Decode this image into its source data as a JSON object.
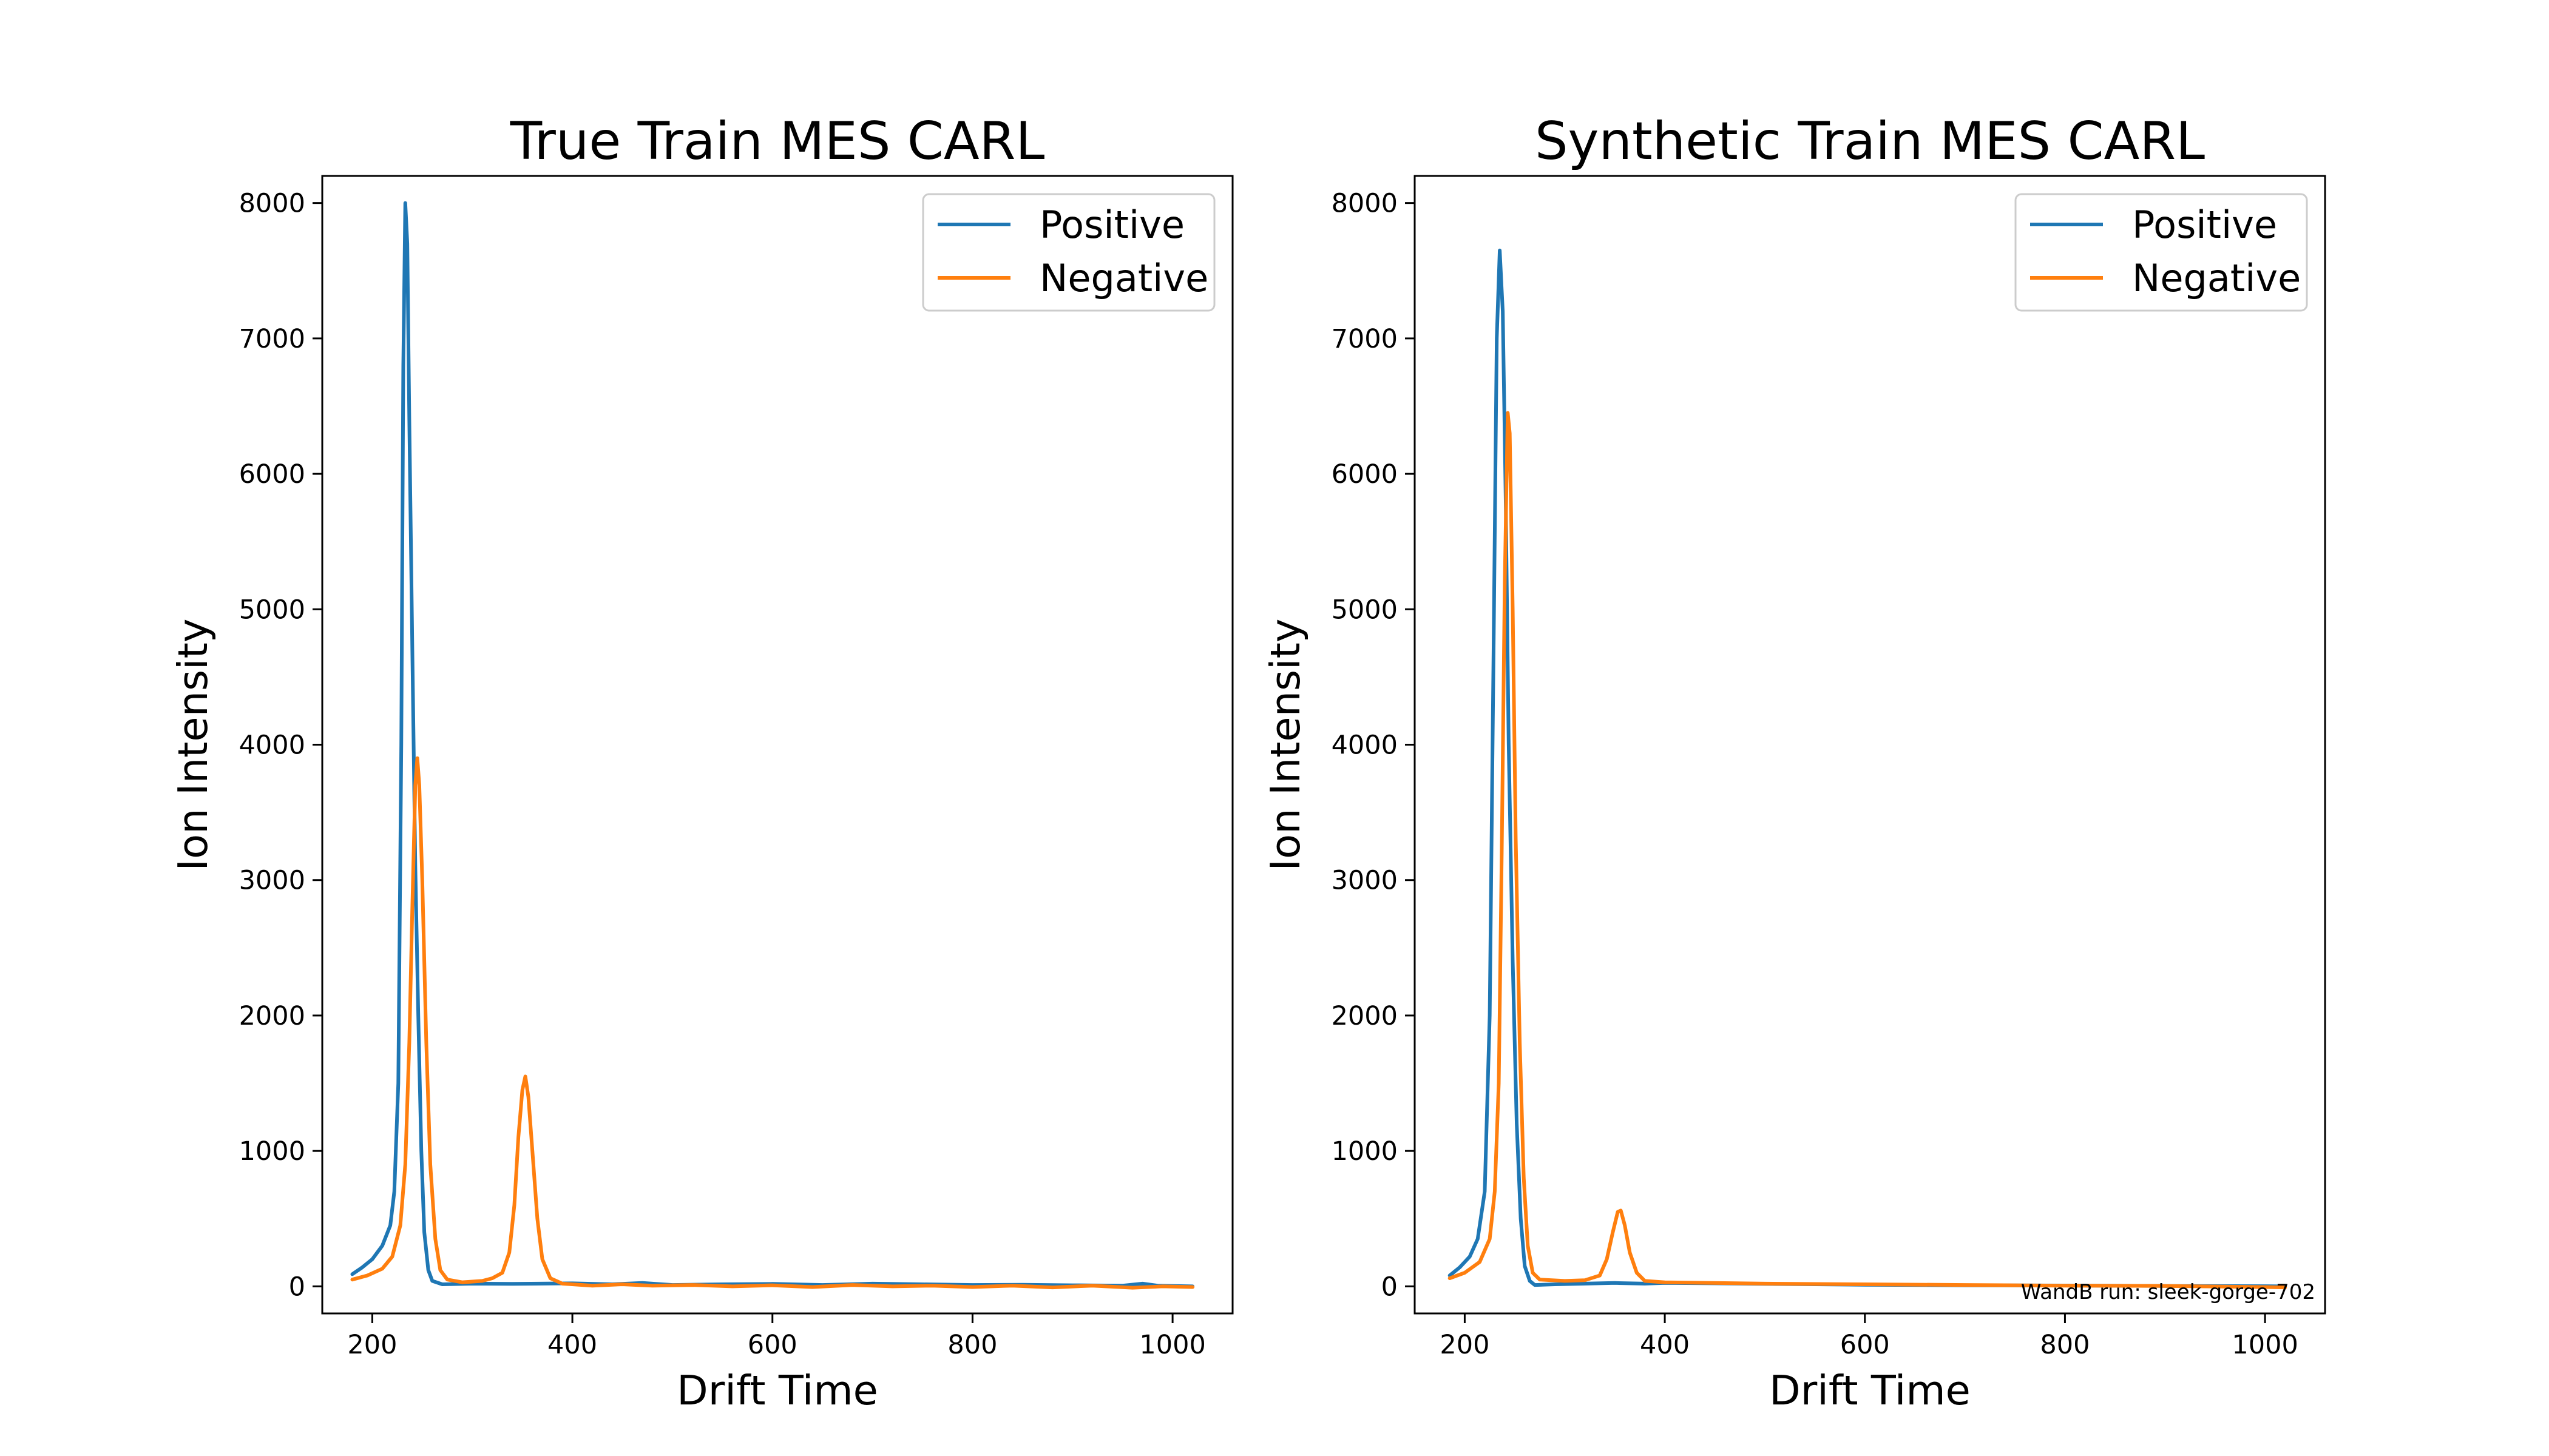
{
  "chart_data": [
    {
      "type": "line",
      "title": "True Train MES CARL",
      "xlabel": "Drift Time",
      "ylabel": "Ion Intensity",
      "xlim": [
        150,
        1060
      ],
      "ylim": [
        -200,
        8200
      ],
      "xticks": [
        200,
        400,
        600,
        800,
        1000
      ],
      "yticks": [
        0,
        1000,
        2000,
        3000,
        4000,
        5000,
        6000,
        7000,
        8000
      ],
      "grid": false,
      "legend_position": "top-right",
      "series": [
        {
          "name": "Positive",
          "color": "#1f77b4",
          "points": [
            [
              180,
              90
            ],
            [
              190,
              140
            ],
            [
              200,
              200
            ],
            [
              210,
              300
            ],
            [
              218,
              450
            ],
            [
              222,
              700
            ],
            [
              226,
              1500
            ],
            [
              229,
              4000
            ],
            [
              231,
              6800
            ],
            [
              233,
              8000
            ],
            [
              235,
              7700
            ],
            [
              237,
              6400
            ],
            [
              240,
              4700
            ],
            [
              243,
              3100
            ],
            [
              246,
              2000
            ],
            [
              249,
              1000
            ],
            [
              252,
              400
            ],
            [
              256,
              120
            ],
            [
              260,
              40
            ],
            [
              270,
              15
            ],
            [
              300,
              20
            ],
            [
              340,
              18
            ],
            [
              400,
              22
            ],
            [
              440,
              15
            ],
            [
              470,
              25
            ],
            [
              500,
              10
            ],
            [
              550,
              15
            ],
            [
              600,
              18
            ],
            [
              650,
              10
            ],
            [
              700,
              20
            ],
            [
              750,
              15
            ],
            [
              800,
              10
            ],
            [
              850,
              12
            ],
            [
              900,
              8
            ],
            [
              950,
              5
            ],
            [
              970,
              20
            ],
            [
              985,
              5
            ],
            [
              1000,
              3
            ],
            [
              1020,
              0
            ]
          ]
        },
        {
          "name": "Negative",
          "color": "#ff7f0e",
          "points": [
            [
              180,
              50
            ],
            [
              195,
              80
            ],
            [
              210,
              130
            ],
            [
              220,
              220
            ],
            [
              228,
              450
            ],
            [
              233,
              900
            ],
            [
              237,
              1800
            ],
            [
              240,
              2800
            ],
            [
              243,
              3700
            ],
            [
              245,
              3900
            ],
            [
              247,
              3700
            ],
            [
              250,
              3000
            ],
            [
              254,
              1800
            ],
            [
              258,
              900
            ],
            [
              263,
              350
            ],
            [
              268,
              120
            ],
            [
              275,
              50
            ],
            [
              290,
              30
            ],
            [
              310,
              40
            ],
            [
              320,
              60
            ],
            [
              330,
              100
            ],
            [
              337,
              250
            ],
            [
              342,
              600
            ],
            [
              346,
              1100
            ],
            [
              350,
              1450
            ],
            [
              353,
              1550
            ],
            [
              356,
              1400
            ],
            [
              360,
              1000
            ],
            [
              365,
              500
            ],
            [
              370,
              200
            ],
            [
              378,
              60
            ],
            [
              390,
              20
            ],
            [
              420,
              5
            ],
            [
              450,
              15
            ],
            [
              480,
              5
            ],
            [
              520,
              10
            ],
            [
              560,
              0
            ],
            [
              600,
              8
            ],
            [
              640,
              -5
            ],
            [
              680,
              10
            ],
            [
              720,
              0
            ],
            [
              760,
              5
            ],
            [
              800,
              -5
            ],
            [
              840,
              5
            ],
            [
              880,
              -8
            ],
            [
              920,
              5
            ],
            [
              960,
              -10
            ],
            [
              990,
              0
            ],
            [
              1020,
              -5
            ]
          ]
        }
      ]
    },
    {
      "type": "line",
      "title": "Synthetic Train MES CARL",
      "xlabel": "Drift Time",
      "ylabel": "Ion Intensity",
      "xlim": [
        150,
        1060
      ],
      "ylim": [
        -200,
        8200
      ],
      "xticks": [
        200,
        400,
        600,
        800,
        1000
      ],
      "yticks": [
        0,
        1000,
        2000,
        3000,
        4000,
        5000,
        6000,
        7000,
        8000
      ],
      "grid": false,
      "legend_position": "top-right",
      "annotation": "WandB run: sleek-gorge-702",
      "series": [
        {
          "name": "Positive",
          "color": "#1f77b4",
          "points": [
            [
              185,
              80
            ],
            [
              195,
              140
            ],
            [
              205,
              220
            ],
            [
              213,
              350
            ],
            [
              220,
              700
            ],
            [
              225,
              2000
            ],
            [
              229,
              4800
            ],
            [
              232,
              7000
            ],
            [
              235,
              7650
            ],
            [
              238,
              7200
            ],
            [
              241,
              5800
            ],
            [
              244,
              4000
            ],
            [
              248,
              2400
            ],
            [
              252,
              1200
            ],
            [
              256,
              500
            ],
            [
              260,
              150
            ],
            [
              265,
              40
            ],
            [
              270,
              10
            ],
            [
              290,
              15
            ],
            [
              320,
              20
            ],
            [
              350,
              25
            ],
            [
              380,
              20
            ],
            [
              400,
              25
            ],
            [
              450,
              22
            ],
            [
              500,
              18
            ],
            [
              600,
              12
            ],
            [
              700,
              8
            ],
            [
              800,
              6
            ],
            [
              900,
              3
            ],
            [
              1000,
              1
            ],
            [
              1020,
              0
            ]
          ]
        },
        {
          "name": "Negative",
          "color": "#ff7f0e",
          "points": [
            [
              185,
              60
            ],
            [
              200,
              100
            ],
            [
              215,
              180
            ],
            [
              225,
              350
            ],
            [
              230,
              700
            ],
            [
              234,
              1500
            ],
            [
              237,
              3200
            ],
            [
              240,
              5200
            ],
            [
              243,
              6450
            ],
            [
              245,
              6300
            ],
            [
              248,
              5000
            ],
            [
              251,
              3300
            ],
            [
              255,
              1800
            ],
            [
              259,
              800
            ],
            [
              263,
              300
            ],
            [
              268,
              100
            ],
            [
              275,
              50
            ],
            [
              300,
              40
            ],
            [
              320,
              45
            ],
            [
              335,
              80
            ],
            [
              342,
              200
            ],
            [
              348,
              400
            ],
            [
              353,
              550
            ],
            [
              356,
              560
            ],
            [
              360,
              450
            ],
            [
              365,
              250
            ],
            [
              372,
              100
            ],
            [
              380,
              40
            ],
            [
              400,
              30
            ],
            [
              500,
              20
            ],
            [
              600,
              15
            ],
            [
              700,
              10
            ],
            [
              800,
              5
            ],
            [
              900,
              3
            ],
            [
              1000,
              -5
            ],
            [
              1020,
              -8
            ]
          ]
        }
      ]
    }
  ]
}
